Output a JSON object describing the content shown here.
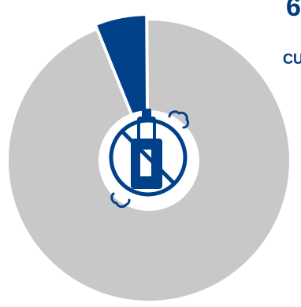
{
  "chart_data": {
    "type": "pie",
    "style": "donut",
    "slices": [
      {
        "label": "",
        "value": 94,
        "color": "#c8c8c8"
      },
      {
        "label": "",
        "value": 6,
        "color": "#00418a"
      }
    ],
    "center_icon": "no-vaping-icon",
    "title": "",
    "legend": "none"
  },
  "colors": {
    "highlight": "#00418a",
    "remainder": "#c8c8c8",
    "background": "#ffffff"
  },
  "cropped_text": {
    "top": "6",
    "side": "CU"
  }
}
